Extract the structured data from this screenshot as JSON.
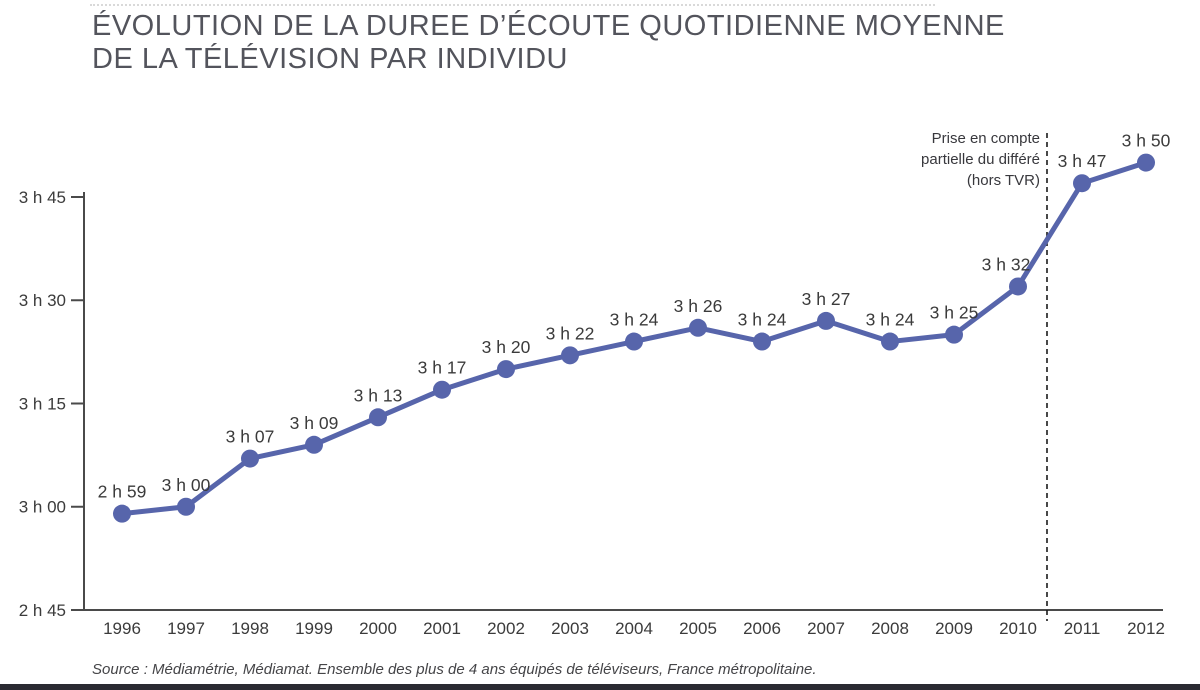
{
  "title": {
    "line1": "ÉVOLUTION DE LA DUREE D’ÉCOUTE QUOTIDIENNE MOYENNE",
    "line2": "DE LA TÉLÉVISION PAR INDIVIDU"
  },
  "chart_data": {
    "type": "line",
    "title": "ÉVOLUTION DE LA DUREE D’ÉCOUTE QUOTIDIENNE MOYENNE DE LA TÉLÉVISION PAR INDIVIDU",
    "categories": [
      "1996",
      "1997",
      "1998",
      "1999",
      "2000",
      "2001",
      "2002",
      "2003",
      "2004",
      "2005",
      "2006",
      "2007",
      "2008",
      "2009",
      "2010",
      "2011",
      "2012"
    ],
    "points": [
      {
        "year": "1996",
        "label": "2 h 59",
        "minutes": 179
      },
      {
        "year": "1997",
        "label": "3 h 00",
        "minutes": 180
      },
      {
        "year": "1998",
        "label": "3 h 07",
        "minutes": 187
      },
      {
        "year": "1999",
        "label": "3 h 09",
        "minutes": 189
      },
      {
        "year": "2000",
        "label": "3 h 13",
        "minutes": 193
      },
      {
        "year": "2001",
        "label": "3 h 17",
        "minutes": 197
      },
      {
        "year": "2002",
        "label": "3 h 20",
        "minutes": 200
      },
      {
        "year": "2003",
        "label": "3 h 22",
        "minutes": 202
      },
      {
        "year": "2004",
        "label": "3 h 24",
        "minutes": 204
      },
      {
        "year": "2005",
        "label": "3 h 26",
        "minutes": 206
      },
      {
        "year": "2006",
        "label": "3 h 24",
        "minutes": 204
      },
      {
        "year": "2007",
        "label": "3 h 27",
        "minutes": 207
      },
      {
        "year": "2008",
        "label": "3 h 24",
        "minutes": 204
      },
      {
        "year": "2009",
        "label": "3 h 25",
        "minutes": 205
      },
      {
        "year": "2010",
        "label": "3 h 32",
        "minutes": 212
      },
      {
        "year": "2011",
        "label": "3 h 47",
        "minutes": 227
      },
      {
        "year": "2012",
        "label": "3 h 50",
        "minutes": 230
      }
    ],
    "y_ticks": [
      {
        "label": "2 h 45",
        "minutes": 165
      },
      {
        "label": "3 h 00",
        "minutes": 180
      },
      {
        "label": "3 h 15",
        "minutes": 195
      },
      {
        "label": "3 h 30",
        "minutes": 210
      },
      {
        "label": "3 h 45",
        "minutes": 225
      }
    ],
    "ylim_minutes": [
      165,
      225
    ],
    "grid": false,
    "separator_after_year": "2010",
    "annotation": {
      "line1": "Prise en compte",
      "line2": "partielle du différé",
      "line3": "(hors TVR)"
    },
    "colors": {
      "line": "#5765ab",
      "axis": "#4a4a4a",
      "labels": "#3b3b3b",
      "separator": "#1a1a1a"
    }
  },
  "source": "Source : Médiamétrie, Médiamat. Ensemble des plus de 4 ans équipés de téléviseurs, France métropolitaine."
}
